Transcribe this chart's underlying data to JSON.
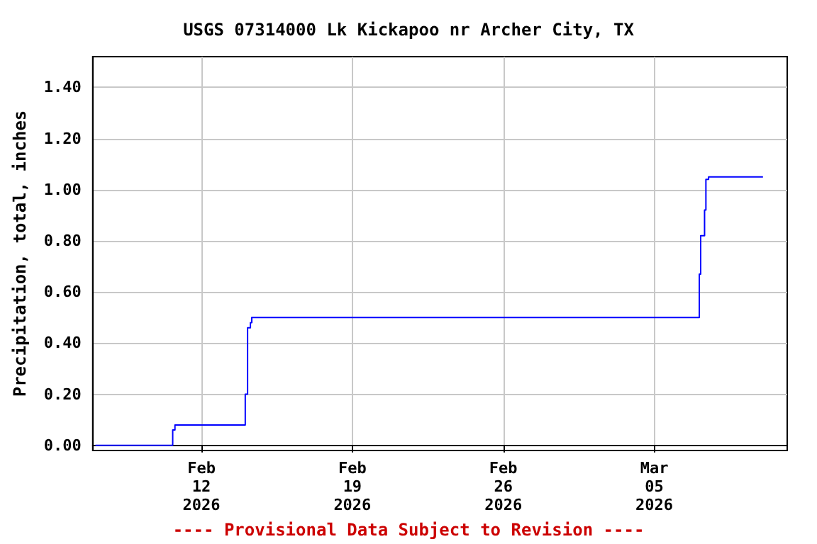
{
  "chart_data": {
    "type": "step",
    "title": "USGS 07314000 Lk Kickapoo nr Archer City, TX",
    "ylabel": "Precipitation, total, inches",
    "annotations": [
      "---- Provisional Data Subject to Revision ----"
    ],
    "x": [
      "2026-02-07T02:00",
      "2026-02-10T16:00",
      "2026-02-10T18:30",
      "2026-02-14T00:45",
      "2026-02-14T03:20",
      "2026-02-14T06:30",
      "2026-02-14T08:00",
      "2026-03-07T02:10",
      "2026-03-07T03:40",
      "2026-03-07T08:00",
      "2026-03-07T09:30",
      "2026-03-07T12:30",
      "2026-03-10T01:00"
    ],
    "series": [
      {
        "color": "#0000ff",
        "values": [
          0,
          0.06,
          0.08,
          0.2,
          0.46,
          0.48,
          0.5,
          0.67,
          0.82,
          0.92,
          1.04,
          1.05,
          1.05
        ]
      }
    ],
    "xlim": [
      "2026-02-06T23:00",
      "2026-03-11T04:00"
    ],
    "xticks": [
      {
        "value": "2026-02-12",
        "label": "Feb\n12\n2026"
      },
      {
        "value": "2026-02-19",
        "label": "Feb\n19\n2026"
      },
      {
        "value": "2026-02-26",
        "label": "Feb\n26\n2026"
      },
      {
        "value": "2026-03-05",
        "label": "Mar\n05\n2026"
      }
    ],
    "ylim": [
      -0.02,
      1.52
    ],
    "yticks": [
      {
        "value": 0,
        "label": "0.00"
      },
      {
        "value": 0.2,
        "label": "0.20"
      },
      {
        "value": 0.4,
        "label": "0.40"
      },
      {
        "value": 0.6,
        "label": "0.60"
      },
      {
        "value": 0.8,
        "label": "0.80"
      },
      {
        "value": 1.0,
        "label": "1.00"
      },
      {
        "value": 1.2,
        "label": "1.20"
      },
      {
        "value": 1.4,
        "label": "1.40"
      }
    ],
    "grid": true
  }
}
